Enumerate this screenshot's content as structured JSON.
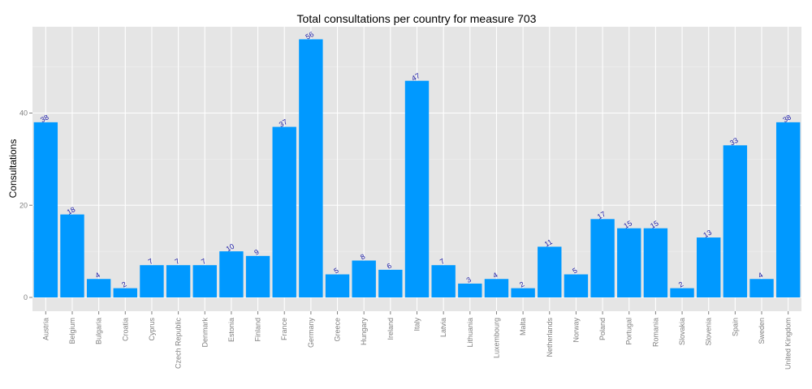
{
  "chart_data": {
    "type": "bar",
    "title": "Total consultations per country for measure 703",
    "xlabel": "",
    "ylabel": "Consultations",
    "categories": [
      "Austria",
      "Belgium",
      "Bulgaria",
      "Croatia",
      "Cyprus",
      "Czech Republic",
      "Denmark",
      "Estonia",
      "Finland",
      "France",
      "Germany",
      "Greece",
      "Hungary",
      "Ireland",
      "Italy",
      "Latvia",
      "Lithuania",
      "Luxembourg",
      "Malta",
      "Netherlands",
      "Norway",
      "Poland",
      "Portugal",
      "Romania",
      "Slovakia",
      "Slovenia",
      "Spain",
      "Sweden",
      "United Kingdom"
    ],
    "values": [
      38,
      18,
      4,
      2,
      7,
      7,
      7,
      10,
      9,
      37,
      56,
      5,
      8,
      6,
      47,
      7,
      3,
      4,
      2,
      11,
      5,
      17,
      15,
      15,
      2,
      13,
      33,
      4,
      38
    ],
    "ylim": [
      0,
      58
    ],
    "yticks": [
      0,
      20,
      40
    ],
    "grid": true,
    "legend": "none",
    "colors": {
      "bar": "#0099ff",
      "panel": "#e5e5e5",
      "grid_major": "#ffffff",
      "grid_minor": "#f2f2f2",
      "data_label": "#1a1aa6"
    }
  }
}
